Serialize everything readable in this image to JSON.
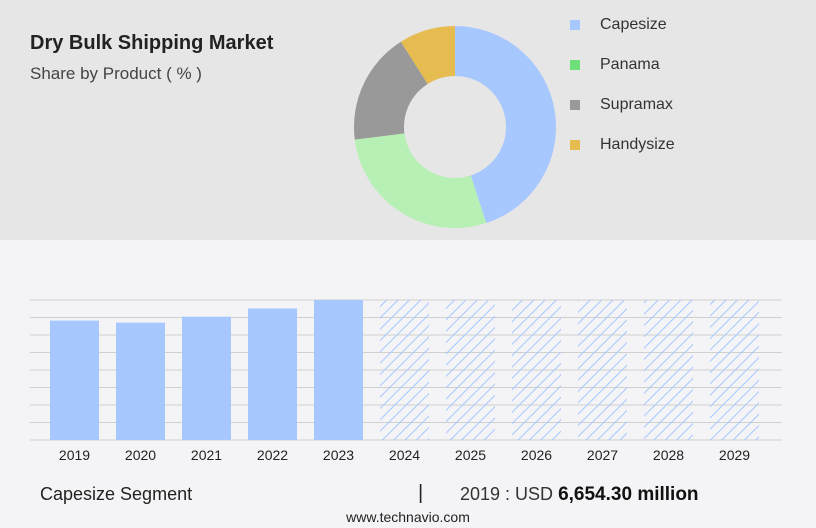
{
  "header": {
    "title": "Dry Bulk Shipping Market",
    "subtitle": "Share by Product ( % )"
  },
  "colors": {
    "capesize": "#a7c7ff",
    "panama": "#b6f0b4",
    "supramax": "#999999",
    "handysize": "#e6bb4f",
    "legend_panama": "#6ee07a",
    "forecast_hatch": "#a7c7ff"
  },
  "chart_data": [
    {
      "type": "pie",
      "variant": "donut",
      "title": "Dry Bulk Shipping Market",
      "subtitle": "Share by Product ( % )",
      "legend_position": "right",
      "categories": [
        "Capesize",
        "Panama",
        "Supramax",
        "Handysize"
      ],
      "values": [
        45,
        28,
        18,
        9
      ]
    },
    {
      "type": "bar",
      "categories": [
        "2019",
        "2020",
        "2021",
        "2022",
        "2023",
        "2024",
        "2025",
        "2026",
        "2027",
        "2028",
        "2029"
      ],
      "series": [
        {
          "values": [
            6654.3,
            6540,
            6870,
            7330,
            7800,
            null,
            null,
            null,
            null,
            null,
            null
          ]
        }
      ],
      "forecast_categories": [
        "2024",
        "2025",
        "2026",
        "2027",
        "2028",
        "2029"
      ],
      "grid": true
    }
  ],
  "footer": {
    "segment_label": "Capesize Segment",
    "separator": "|",
    "value_prefix": "2019 : USD",
    "value_bold": "6,654.30 million"
  },
  "source": "www.technavio.com"
}
